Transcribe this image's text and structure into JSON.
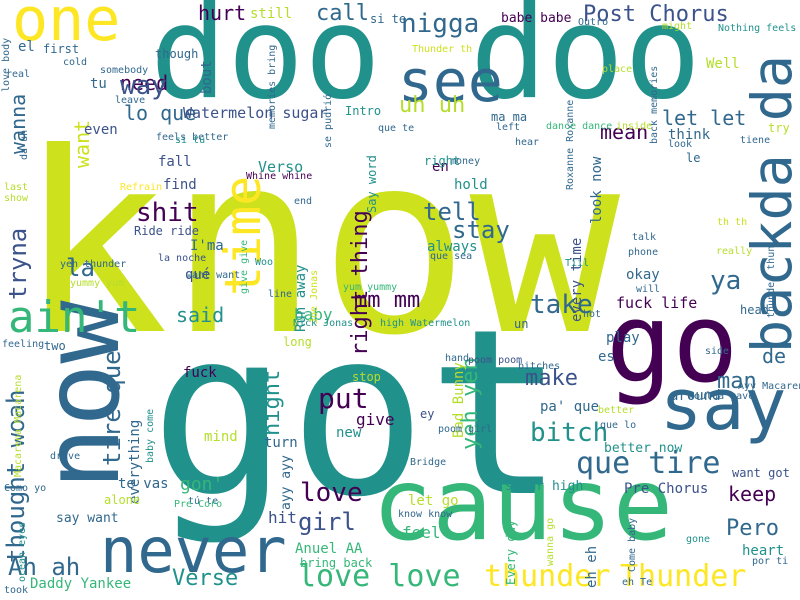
{
  "colors": {
    "background": "#ffffff",
    "yellow": "#cde11d",
    "teal": "#21918c",
    "green": "#35b779",
    "navy": "#31688e",
    "purple": "#440154",
    "indigo": "#3b528b",
    "light_green": "#7ad151",
    "lime": "#b5de2b",
    "gold": "#fde725"
  },
  "words": [
    {
      "text": "know"
    },
    {
      "text": "got"
    },
    {
      "text": "doo"
    },
    {
      "text": "doo"
    },
    {
      "text": "cause"
    },
    {
      "text": "go"
    },
    {
      "text": "never"
    },
    {
      "text": "now"
    },
    {
      "text": "say"
    },
    {
      "text": "one"
    },
    {
      "text": "see"
    },
    {
      "text": "backda da"
    },
    {
      "text": "time"
    },
    {
      "text": "ain't"
    },
    {
      "text": "thunder"
    },
    {
      "text": "Thunder"
    },
    {
      "text": "love love"
    },
    {
      "text": "que tire"
    },
    {
      "text": "Post Chorus"
    },
    {
      "text": "nigga"
    },
    {
      "text": "call"
    },
    {
      "text": "hurt"
    },
    {
      "text": "need"
    },
    {
      "text": "way"
    },
    {
      "text": "lo que"
    },
    {
      "text": "uh uh"
    },
    {
      "text": "Watermelon sugar"
    },
    {
      "text": "mean"
    },
    {
      "text": "let let"
    },
    {
      "text": "tell"
    },
    {
      "text": "stay"
    },
    {
      "text": "shit"
    },
    {
      "text": "right thing"
    },
    {
      "text": "take"
    },
    {
      "text": "mm mm"
    },
    {
      "text": "ya"
    },
    {
      "text": "de"
    },
    {
      "text": "man"
    },
    {
      "text": "make"
    },
    {
      "text": "bitch"
    },
    {
      "text": "said"
    },
    {
      "text": "baby"
    },
    {
      "text": "la"
    },
    {
      "text": "tryna"
    },
    {
      "text": "wanna"
    },
    {
      "text": "want"
    },
    {
      "text": "tire que"
    },
    {
      "text": "thought woah"
    },
    {
      "text": "night"
    },
    {
      "text": "put"
    },
    {
      "text": "give"
    },
    {
      "text": "yeh yeh"
    },
    {
      "text": "keep"
    },
    {
      "text": "Pero"
    },
    {
      "text": "heart"
    },
    {
      "text": "girl"
    },
    {
      "text": "love"
    },
    {
      "text": "Verse"
    },
    {
      "text": "Ah ah"
    },
    {
      "text": "Daddy Yankee"
    },
    {
      "text": "gon'"
    },
    {
      "text": "hit"
    },
    {
      "text": "fuck life"
    },
    {
      "text": "fuck"
    },
    {
      "text": "Anuel AA"
    },
    {
      "text": "sugar high"
    },
    {
      "text": "Pre Chorus"
    },
    {
      "text": "Every day"
    },
    {
      "text": "every time"
    },
    {
      "text": "look now"
    },
    {
      "text": "hold"
    },
    {
      "text": "en"
    },
    {
      "text": "I'ma"
    },
    {
      "text": "fall"
    },
    {
      "text": "find"
    },
    {
      "text": "Verso"
    },
    {
      "text": "Ride ride"
    },
    {
      "text": "la noche"
    },
    {
      "text": "qué"
    },
    {
      "text": "even"
    },
    {
      "text": "tu"
    },
    {
      "text": "bout"
    },
    {
      "text": "still"
    },
    {
      "text": "though"
    },
    {
      "text": "first"
    },
    {
      "text": "el"
    },
    {
      "text": "Run away"
    },
    {
      "text": "Say word"
    },
    {
      "text": "Intro"
    },
    {
      "text": "always"
    },
    {
      "text": "okay"
    },
    {
      "text": "play"
    },
    {
      "text": "es"
    },
    {
      "text": "pa' que"
    },
    {
      "text": "Bad Bunny"
    },
    {
      "text": "around"
    },
    {
      "text": "better now"
    },
    {
      "text": "want got"
    },
    {
      "text": "ey"
    },
    {
      "text": "stop"
    },
    {
      "text": "new"
    },
    {
      "text": "mind"
    },
    {
      "text": "everything"
    },
    {
      "text": "turn"
    },
    {
      "text": "ayy ayy"
    },
    {
      "text": "te vas"
    },
    {
      "text": "alone"
    },
    {
      "text": "say want"
    },
    {
      "text": "two"
    },
    {
      "text": "long"
    },
    {
      "text": "bring back"
    },
    {
      "text": "feel"
    },
    {
      "text": "let go"
    },
    {
      "text": "eh eh"
    },
    {
      "text": "head"
    },
    {
      "text": "think"
    },
    {
      "text": "le"
    },
    {
      "text": "try"
    },
    {
      "text": "Well"
    },
    {
      "text": "babe babe"
    },
    {
      "text": "si te"
    },
    {
      "text": "ma ma"
    },
    {
      "text": "Nothing feels"
    },
    {
      "text": "Outro"
    },
    {
      "text": "Roxanne Roxanne"
    },
    {
      "text": "Thunder th"
    },
    {
      "text": "Whine whine"
    },
    {
      "text": "money"
    },
    {
      "text": "right"
    },
    {
      "text": "Woo"
    },
    {
      "text": "Nick Jonas"
    },
    {
      "text": "high Watermelon"
    },
    {
      "text": "un"
    },
    {
      "text": "yum yummy"
    },
    {
      "text": "Joe Jonas"
    },
    {
      "text": "poom poom"
    },
    {
      "text": "poom girl"
    },
    {
      "text": "bitches"
    },
    {
      "text": "hand"
    },
    {
      "text": "que lo"
    },
    {
      "text": "better"
    },
    {
      "text": "Woulda gave"
    },
    {
      "text": "Ayy Macarena"
    },
    {
      "text": "side"
    },
    {
      "text": "tú te"
    },
    {
      "text": "feeling"
    },
    {
      "text": "Macarena Macarena"
    },
    {
      "text": "baby come"
    },
    {
      "text": "Pre Coro"
    },
    {
      "text": "drive"
    },
    {
      "text": "Como yo"
    },
    {
      "text": "ocean eyes"
    },
    {
      "text": "took"
    },
    {
      "text": "know know"
    },
    {
      "text": "Bridge"
    },
    {
      "text": "wanna go"
    },
    {
      "text": "Come baby"
    },
    {
      "text": "gone"
    },
    {
      "text": "eh Te"
    },
    {
      "text": "por ti"
    },
    {
      "text": "thunder thun"
    },
    {
      "text": "really"
    },
    {
      "text": "th th"
    },
    {
      "text": "hot"
    },
    {
      "text": "line"
    },
    {
      "text": "give give"
    },
    {
      "text": "want want"
    },
    {
      "text": "yeh thunder"
    },
    {
      "text": "yummy yum"
    },
    {
      "text": "talk"
    },
    {
      "text": "phone"
    },
    {
      "text": "will"
    },
    {
      "text": "look"
    },
    {
      "text": "tiene"
    },
    {
      "text": "back memories"
    },
    {
      "text": "might"
    },
    {
      "text": "place"
    },
    {
      "text": "dance dance"
    },
    {
      "text": "inside"
    },
    {
      "text": "hear"
    },
    {
      "text": "left"
    },
    {
      "text": "que te"
    },
    {
      "text": "feels better"
    },
    {
      "text": "si tú"
    },
    {
      "text": "leave"
    },
    {
      "text": "memories bring"
    },
    {
      "text": "se pudrió"
    },
    {
      "text": "cold"
    },
    {
      "text": "somebody"
    },
    {
      "text": "love body"
    },
    {
      "text": "real"
    },
    {
      "text": "da uh"
    },
    {
      "text": "last"
    },
    {
      "text": "show"
    },
    {
      "text": "Refrain"
    },
    {
      "text": "end"
    },
    {
      "text": "que sea"
    },
    {
      "text": "Tiil"
    }
  ]
}
